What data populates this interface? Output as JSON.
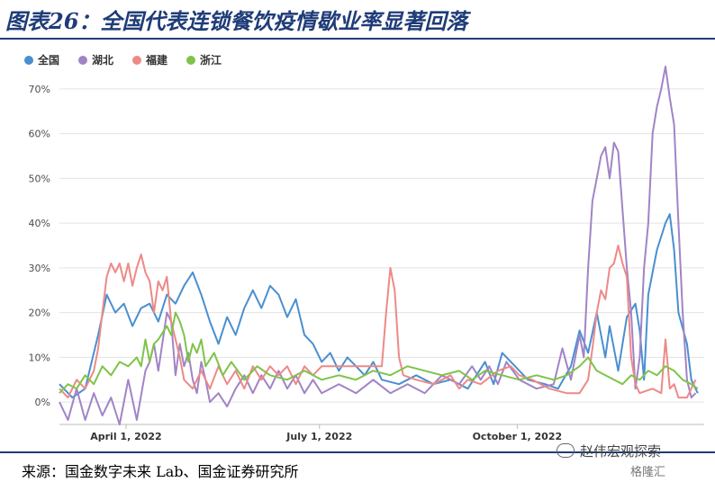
{
  "title": "图表26：全国代表连锁餐饮疫情歇业率显著回落",
  "source": "来源：国金数字未来 Lab、国金证券研究所",
  "watermark": "赵伟宏观探索",
  "watermark_logo": "格隆汇",
  "chart_data": {
    "type": "line",
    "ylim": [
      -5,
      75
    ],
    "yticks": [
      "0%",
      "10%",
      "20%",
      "30%",
      "40%",
      "50%",
      "60%",
      "70%"
    ],
    "ytick_values": [
      0,
      10,
      20,
      30,
      40,
      50,
      60,
      70
    ],
    "xlim": [
      0,
      300
    ],
    "xticks": [
      {
        "label": "April 1, 2022",
        "day": 31
      },
      {
        "label": "July 1, 2022",
        "day": 121
      },
      {
        "label": "October 1, 2022",
        "day": 213
      }
    ],
    "legend_position": "top-left",
    "grid": "horizontal",
    "series": [
      {
        "name": "全国",
        "color": "#4a8fd0",
        "points": [
          [
            0,
            4
          ],
          [
            6,
            1
          ],
          [
            12,
            3
          ],
          [
            18,
            15
          ],
          [
            22,
            24
          ],
          [
            26,
            20
          ],
          [
            30,
            22
          ],
          [
            34,
            17
          ],
          [
            38,
            21
          ],
          [
            42,
            22
          ],
          [
            46,
            18
          ],
          [
            50,
            24
          ],
          [
            54,
            22
          ],
          [
            58,
            26
          ],
          [
            62,
            29
          ],
          [
            66,
            24
          ],
          [
            70,
            18
          ],
          [
            74,
            13
          ],
          [
            78,
            19
          ],
          [
            82,
            15
          ],
          [
            86,
            21
          ],
          [
            90,
            25
          ],
          [
            94,
            21
          ],
          [
            98,
            26
          ],
          [
            102,
            24
          ],
          [
            106,
            19
          ],
          [
            110,
            23
          ],
          [
            114,
            15
          ],
          [
            118,
            13
          ],
          [
            122,
            9
          ],
          [
            126,
            11
          ],
          [
            130,
            7
          ],
          [
            134,
            10
          ],
          [
            138,
            8
          ],
          [
            142,
            6
          ],
          [
            146,
            9
          ],
          [
            150,
            5
          ],
          [
            158,
            4
          ],
          [
            166,
            6
          ],
          [
            174,
            4
          ],
          [
            182,
            5
          ],
          [
            190,
            3
          ],
          [
            198,
            9
          ],
          [
            202,
            4
          ],
          [
            206,
            11
          ],
          [
            212,
            8
          ],
          [
            218,
            5
          ],
          [
            226,
            4
          ],
          [
            232,
            3
          ],
          [
            238,
            8
          ],
          [
            242,
            16
          ],
          [
            246,
            11
          ],
          [
            250,
            20
          ],
          [
            254,
            10
          ],
          [
            256,
            17
          ],
          [
            260,
            7
          ],
          [
            264,
            19
          ],
          [
            268,
            22
          ],
          [
            270,
            16
          ],
          [
            272,
            5
          ],
          [
            274,
            24
          ],
          [
            278,
            34
          ],
          [
            282,
            40
          ],
          [
            284,
            42
          ],
          [
            286,
            34
          ],
          [
            288,
            20
          ],
          [
            292,
            13
          ],
          [
            294,
            5
          ],
          [
            297,
            2
          ]
        ]
      },
      {
        "name": "湖北",
        "color": "#a184c6",
        "points": [
          [
            0,
            0
          ],
          [
            4,
            -4
          ],
          [
            8,
            3
          ],
          [
            12,
            -4
          ],
          [
            16,
            2
          ],
          [
            20,
            -3
          ],
          [
            24,
            1
          ],
          [
            28,
            -5
          ],
          [
            32,
            5
          ],
          [
            36,
            -4
          ],
          [
            40,
            7
          ],
          [
            42,
            9
          ],
          [
            44,
            13
          ],
          [
            46,
            7
          ],
          [
            50,
            20
          ],
          [
            52,
            18
          ],
          [
            54,
            6
          ],
          [
            56,
            13
          ],
          [
            58,
            8
          ],
          [
            60,
            11
          ],
          [
            62,
            5
          ],
          [
            64,
            2
          ],
          [
            66,
            9
          ],
          [
            68,
            5
          ],
          [
            70,
            0
          ],
          [
            74,
            2
          ],
          [
            78,
            -1
          ],
          [
            82,
            3
          ],
          [
            86,
            6
          ],
          [
            90,
            2
          ],
          [
            94,
            6
          ],
          [
            98,
            3
          ],
          [
            102,
            7
          ],
          [
            106,
            3
          ],
          [
            110,
            6
          ],
          [
            114,
            2
          ],
          [
            118,
            5
          ],
          [
            122,
            2
          ],
          [
            130,
            4
          ],
          [
            138,
            2
          ],
          [
            146,
            5
          ],
          [
            154,
            2
          ],
          [
            162,
            4
          ],
          [
            170,
            2
          ],
          [
            178,
            6
          ],
          [
            186,
            4
          ],
          [
            192,
            8
          ],
          [
            196,
            5
          ],
          [
            200,
            8
          ],
          [
            204,
            4
          ],
          [
            208,
            9
          ],
          [
            214,
            5
          ],
          [
            222,
            3
          ],
          [
            230,
            4
          ],
          [
            234,
            12
          ],
          [
            238,
            5
          ],
          [
            242,
            15
          ],
          [
            244,
            10
          ],
          [
            246,
            30
          ],
          [
            248,
            45
          ],
          [
            250,
            50
          ],
          [
            252,
            55
          ],
          [
            254,
            57
          ],
          [
            256,
            50
          ],
          [
            258,
            58
          ],
          [
            260,
            56
          ],
          [
            262,
            43
          ],
          [
            264,
            30
          ],
          [
            266,
            20
          ],
          [
            268,
            3
          ],
          [
            270,
            10
          ],
          [
            272,
            30
          ],
          [
            274,
            40
          ],
          [
            276,
            60
          ],
          [
            278,
            66
          ],
          [
            280,
            70
          ],
          [
            282,
            75
          ],
          [
            284,
            68
          ],
          [
            286,
            62
          ],
          [
            288,
            40
          ],
          [
            290,
            20
          ],
          [
            292,
            5
          ],
          [
            294,
            1
          ],
          [
            296,
            2
          ]
        ]
      },
      {
        "name": "福建",
        "color": "#ec8a87",
        "points": [
          [
            0,
            3
          ],
          [
            4,
            1
          ],
          [
            8,
            5
          ],
          [
            12,
            3
          ],
          [
            16,
            7
          ],
          [
            18,
            12
          ],
          [
            20,
            20
          ],
          [
            22,
            28
          ],
          [
            24,
            31
          ],
          [
            26,
            29
          ],
          [
            28,
            31
          ],
          [
            30,
            27
          ],
          [
            32,
            31
          ],
          [
            34,
            26
          ],
          [
            36,
            30
          ],
          [
            38,
            33
          ],
          [
            40,
            29
          ],
          [
            42,
            27
          ],
          [
            44,
            20
          ],
          [
            46,
            27
          ],
          [
            48,
            25
          ],
          [
            50,
            28
          ],
          [
            52,
            18
          ],
          [
            54,
            14
          ],
          [
            56,
            10
          ],
          [
            58,
            5
          ],
          [
            62,
            3
          ],
          [
            66,
            7
          ],
          [
            70,
            3
          ],
          [
            74,
            8
          ],
          [
            78,
            4
          ],
          [
            82,
            7
          ],
          [
            86,
            3
          ],
          [
            90,
            8
          ],
          [
            94,
            5
          ],
          [
            98,
            8
          ],
          [
            102,
            6
          ],
          [
            106,
            8
          ],
          [
            110,
            4
          ],
          [
            114,
            8
          ],
          [
            118,
            6
          ],
          [
            122,
            8
          ],
          [
            130,
            8
          ],
          [
            138,
            8
          ],
          [
            146,
            8
          ],
          [
            150,
            8
          ],
          [
            152,
            20
          ],
          [
            154,
            30
          ],
          [
            156,
            25
          ],
          [
            158,
            10
          ],
          [
            160,
            6
          ],
          [
            166,
            5
          ],
          [
            174,
            4
          ],
          [
            182,
            6
          ],
          [
            186,
            3
          ],
          [
            190,
            5
          ],
          [
            196,
            4
          ],
          [
            204,
            7
          ],
          [
            210,
            8
          ],
          [
            214,
            6
          ],
          [
            220,
            5
          ],
          [
            228,
            3
          ],
          [
            236,
            2
          ],
          [
            242,
            2
          ],
          [
            246,
            5
          ],
          [
            248,
            12
          ],
          [
            250,
            20
          ],
          [
            252,
            25
          ],
          [
            254,
            23
          ],
          [
            256,
            30
          ],
          [
            258,
            31
          ],
          [
            260,
            35
          ],
          [
            262,
            31
          ],
          [
            264,
            28
          ],
          [
            266,
            10
          ],
          [
            268,
            4
          ],
          [
            270,
            2
          ],
          [
            276,
            3
          ],
          [
            280,
            2
          ],
          [
            282,
            14
          ],
          [
            284,
            3
          ],
          [
            286,
            4
          ],
          [
            288,
            1
          ],
          [
            292,
            1
          ],
          [
            296,
            5
          ]
        ]
      },
      {
        "name": "浙江",
        "color": "#7fc34a",
        "points": [
          [
            0,
            2
          ],
          [
            4,
            4
          ],
          [
            8,
            3
          ],
          [
            12,
            6
          ],
          [
            16,
            4
          ],
          [
            20,
            8
          ],
          [
            24,
            6
          ],
          [
            28,
            9
          ],
          [
            32,
            8
          ],
          [
            36,
            10
          ],
          [
            38,
            8
          ],
          [
            40,
            14
          ],
          [
            42,
            9
          ],
          [
            44,
            13
          ],
          [
            46,
            14
          ],
          [
            50,
            17
          ],
          [
            52,
            15
          ],
          [
            54,
            20
          ],
          [
            56,
            18
          ],
          [
            58,
            15
          ],
          [
            60,
            9
          ],
          [
            62,
            13
          ],
          [
            64,
            11
          ],
          [
            66,
            14
          ],
          [
            68,
            8
          ],
          [
            72,
            11
          ],
          [
            76,
            6
          ],
          [
            80,
            9
          ],
          [
            86,
            5
          ],
          [
            92,
            8
          ],
          [
            98,
            6
          ],
          [
            106,
            5
          ],
          [
            114,
            7
          ],
          [
            122,
            5
          ],
          [
            130,
            6
          ],
          [
            138,
            5
          ],
          [
            146,
            7
          ],
          [
            154,
            6
          ],
          [
            162,
            8
          ],
          [
            170,
            7
          ],
          [
            178,
            6
          ],
          [
            186,
            7
          ],
          [
            192,
            5
          ],
          [
            198,
            7
          ],
          [
            206,
            6
          ],
          [
            214,
            5
          ],
          [
            222,
            6
          ],
          [
            230,
            5
          ],
          [
            236,
            6
          ],
          [
            242,
            8
          ],
          [
            246,
            10
          ],
          [
            250,
            7
          ],
          [
            254,
            6
          ],
          [
            258,
            5
          ],
          [
            262,
            4
          ],
          [
            266,
            6
          ],
          [
            270,
            5
          ],
          [
            274,
            7
          ],
          [
            278,
            6
          ],
          [
            282,
            8
          ],
          [
            286,
            7
          ],
          [
            290,
            5
          ],
          [
            294,
            4
          ],
          [
            297,
            3
          ]
        ]
      }
    ]
  }
}
